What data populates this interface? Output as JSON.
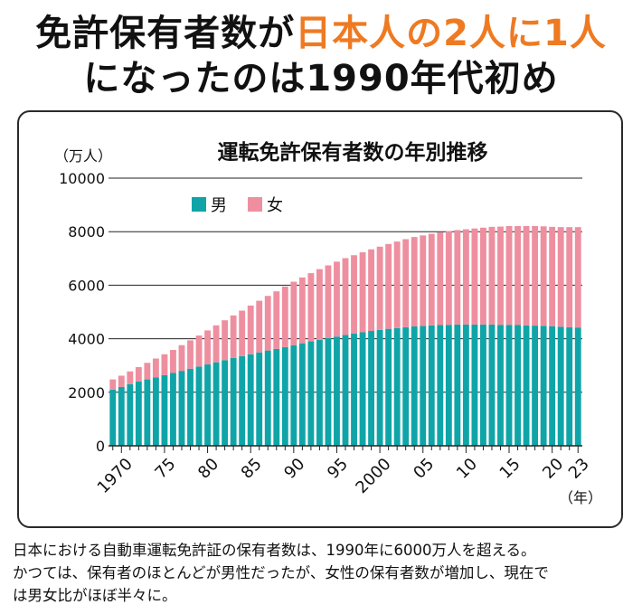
{
  "headline": {
    "line1_pre": "免許保有者数が",
    "line1_accent": "日本人の2人に1人",
    "line2": "になったのは1990年代初め"
  },
  "caption": {
    "line1": "日本における自動車運転免許証の保有者数は、1990年に6000万人を超える。",
    "line2": "かつては、保有者のほとんどが男性だったが、女性の保有者数が増加し、現在で",
    "line3": "は男女比がほぼ半々に。"
  },
  "colors": {
    "accent": "#ee7a22",
    "male": "#0fa5a8",
    "female": "#ee8fa0"
  },
  "chart_data": {
    "type": "bar",
    "stacked": true,
    "title": "運転免許保有者数の年別推移",
    "ylabel": "（万人）",
    "xlabel": "（年）",
    "ylim": [
      0,
      10000
    ],
    "yticks": [
      "0",
      "2000",
      "4000",
      "6000",
      "8000",
      "10000"
    ],
    "ytick_values": [
      0,
      2000,
      4000,
      6000,
      8000,
      10000
    ],
    "xtick_labels": [
      "1970",
      "75",
      "80",
      "85",
      "90",
      "95",
      "2000",
      "05",
      "10",
      "15",
      "20",
      "23"
    ],
    "xtick_indices": [
      1,
      6,
      11,
      16,
      21,
      26,
      31,
      36,
      41,
      46,
      51,
      54
    ],
    "legend_position": "top-left",
    "grid": true,
    "categories": [
      "1969",
      "1970",
      "1971",
      "1972",
      "1973",
      "1974",
      "1975",
      "1976",
      "1977",
      "1978",
      "1979",
      "1980",
      "1981",
      "1982",
      "1983",
      "1984",
      "1985",
      "1986",
      "1987",
      "1988",
      "1989",
      "1990",
      "1991",
      "1992",
      "1993",
      "1994",
      "1995",
      "1996",
      "1997",
      "1998",
      "1999",
      "2000",
      "2001",
      "2002",
      "2003",
      "2004",
      "2005",
      "2006",
      "2007",
      "2008",
      "2009",
      "2010",
      "2011",
      "2012",
      "2013",
      "2014",
      "2015",
      "2016",
      "2017",
      "2018",
      "2019",
      "2020",
      "2021",
      "2022",
      "2023"
    ],
    "series": [
      {
        "name": "男",
        "values": [
          2100,
          2200,
          2300,
          2400,
          2480,
          2560,
          2640,
          2720,
          2800,
          2880,
          2960,
          3040,
          3120,
          3200,
          3280,
          3350,
          3420,
          3490,
          3560,
          3620,
          3690,
          3760,
          3830,
          3900,
          3960,
          4020,
          4080,
          4140,
          4190,
          4240,
          4290,
          4330,
          4370,
          4400,
          4430,
          4460,
          4480,
          4500,
          4510,
          4520,
          4530,
          4530,
          4530,
          4530,
          4530,
          4520,
          4520,
          4510,
          4500,
          4490,
          4480,
          4470,
          4450,
          4430,
          4420
        ]
      },
      {
        "name": "女",
        "values": [
          380,
          420,
          480,
          540,
          620,
          700,
          780,
          860,
          960,
          1060,
          1160,
          1270,
          1380,
          1490,
          1590,
          1700,
          1820,
          1930,
          2040,
          2150,
          2260,
          2370,
          2460,
          2550,
          2640,
          2720,
          2800,
          2870,
          2930,
          2990,
          3050,
          3110,
          3170,
          3230,
          3290,
          3340,
          3380,
          3420,
          3460,
          3500,
          3530,
          3560,
          3590,
          3620,
          3650,
          3670,
          3690,
          3700,
          3710,
          3720,
          3720,
          3710,
          3720,
          3740,
          3750
        ]
      }
    ]
  }
}
